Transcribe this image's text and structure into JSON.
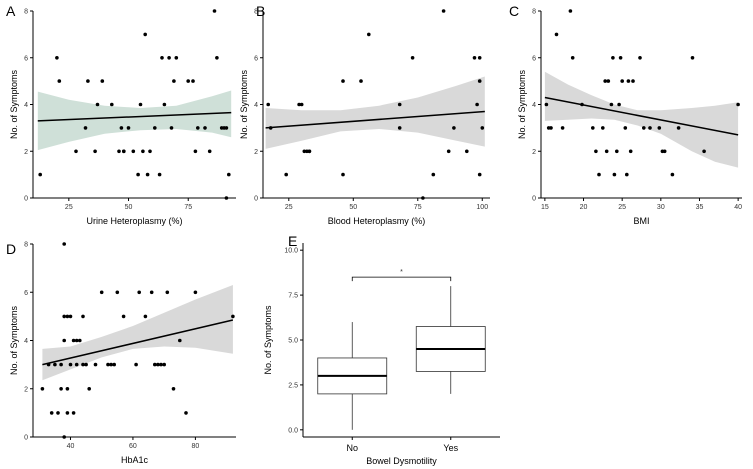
{
  "chart_data": [
    {
      "letter": "A",
      "type": "scatter",
      "xlabel": "Urine Heteroplasmy (%)",
      "ylabel": "No. of Symptoms",
      "xlim": [
        10,
        95
      ],
      "ylim": [
        0,
        8
      ],
      "xticks": [
        25,
        50,
        75
      ],
      "yticks": [
        0,
        2,
        4,
        6,
        8
      ],
      "xticklabels": [
        "25",
        "50",
        "75"
      ],
      "yticklabels": [
        "0",
        "2",
        "4",
        "6",
        "8"
      ],
      "band_color": "#cfe0d8",
      "points": [
        [
          13,
          1
        ],
        [
          20,
          6
        ],
        [
          21,
          5
        ],
        [
          28,
          2
        ],
        [
          32,
          3
        ],
        [
          33,
          5
        ],
        [
          36,
          2
        ],
        [
          37,
          4
        ],
        [
          39,
          5
        ],
        [
          43,
          4
        ],
        [
          46,
          2
        ],
        [
          47,
          3
        ],
        [
          48,
          2
        ],
        [
          48,
          2
        ],
        [
          50,
          3
        ],
        [
          52,
          2
        ],
        [
          54,
          1
        ],
        [
          55,
          4
        ],
        [
          56,
          2
        ],
        [
          57,
          7
        ],
        [
          58,
          1
        ],
        [
          59,
          2
        ],
        [
          61,
          3
        ],
        [
          63,
          1
        ],
        [
          64,
          6
        ],
        [
          65,
          4
        ],
        [
          67,
          6
        ],
        [
          68,
          3
        ],
        [
          69,
          5
        ],
        [
          70,
          6
        ],
        [
          75,
          5
        ],
        [
          77,
          5
        ],
        [
          78,
          2
        ],
        [
          79,
          3
        ],
        [
          82,
          3
        ],
        [
          84,
          2
        ],
        [
          86,
          8
        ],
        [
          87,
          6
        ],
        [
          89,
          3
        ],
        [
          90,
          3
        ],
        [
          91,
          0
        ],
        [
          91,
          3
        ],
        [
          92,
          1
        ]
      ],
      "fit": {
        "x0": 12,
        "y0": 3.3,
        "x1": 93,
        "y1": 3.65
      },
      "ci_upper": [
        [
          12,
          4.55
        ],
        [
          25,
          4.2
        ],
        [
          40,
          3.95
        ],
        [
          55,
          3.85
        ],
        [
          70,
          3.95
        ],
        [
          85,
          4.35
        ],
        [
          93,
          4.6
        ]
      ],
      "ci_lower": [
        [
          12,
          2.05
        ],
        [
          25,
          2.4
        ],
        [
          40,
          2.75
        ],
        [
          55,
          2.9
        ],
        [
          70,
          2.95
        ],
        [
          85,
          2.8
        ],
        [
          93,
          2.6
        ]
      ]
    },
    {
      "letter": "B",
      "type": "scatter",
      "xlabel": "Blood Heteroplasmy (%)",
      "ylabel": "No. of Symptoms",
      "xlim": [
        15,
        103
      ],
      "ylim": [
        0,
        8
      ],
      "xticks": [
        25,
        50,
        75,
        100
      ],
      "yticks": [
        0,
        2,
        4,
        6,
        8
      ],
      "xticklabels": [
        "25",
        "50",
        "75",
        "100"
      ],
      "yticklabels": [
        "0",
        "2",
        "4",
        "6",
        "8"
      ],
      "band_color": "#d9d9d9",
      "points": [
        [
          17,
          4
        ],
        [
          18,
          3
        ],
        [
          24,
          1
        ],
        [
          29,
          4
        ],
        [
          30,
          4
        ],
        [
          31,
          2
        ],
        [
          32,
          2
        ],
        [
          33,
          2
        ],
        [
          33,
          2
        ],
        [
          46,
          1
        ],
        [
          46,
          5
        ],
        [
          53,
          5
        ],
        [
          56,
          7
        ],
        [
          68,
          4
        ],
        [
          68,
          3
        ],
        [
          73,
          6
        ],
        [
          77,
          0
        ],
        [
          81,
          1
        ],
        [
          85,
          8
        ],
        [
          87,
          2
        ],
        [
          89,
          3
        ],
        [
          94,
          2
        ],
        [
          97,
          6
        ],
        [
          98,
          4
        ],
        [
          99,
          1
        ],
        [
          99,
          5
        ],
        [
          99,
          6
        ],
        [
          100,
          3
        ]
      ],
      "fit": {
        "x0": 16,
        "y0": 3.0,
        "x1": 101,
        "y1": 3.7
      },
      "ci_upper": [
        [
          16,
          3.85
        ],
        [
          30,
          3.75
        ],
        [
          45,
          3.75
        ],
        [
          60,
          3.95
        ],
        [
          75,
          4.3
        ],
        [
          90,
          4.8
        ],
        [
          101,
          5.2
        ]
      ],
      "ci_lower": [
        [
          16,
          2.1
        ],
        [
          30,
          2.45
        ],
        [
          45,
          2.85
        ],
        [
          60,
          2.95
        ],
        [
          75,
          2.8
        ],
        [
          90,
          2.45
        ],
        [
          101,
          2.2
        ]
      ]
    },
    {
      "letter": "C",
      "type": "scatter",
      "xlabel": "BMI",
      "ylabel": "No. of Symptoms",
      "xlim": [
        14.5,
        40.5
      ],
      "ylim": [
        0,
        8
      ],
      "xticks": [
        15,
        20,
        25,
        30,
        35,
        40
      ],
      "yticks": [
        0,
        2,
        4,
        6,
        8
      ],
      "xticklabels": [
        "15",
        "20",
        "25",
        "30",
        "35",
        "40"
      ],
      "yticklabels": [
        "0",
        "2",
        "4",
        "6",
        "8"
      ],
      "band_color": "#d9d9d9",
      "points": [
        [
          15.2,
          4
        ],
        [
          15.5,
          3
        ],
        [
          15.8,
          3
        ],
        [
          16.5,
          7
        ],
        [
          17.3,
          3
        ],
        [
          18.3,
          8
        ],
        [
          18.6,
          6
        ],
        [
          19.8,
          4
        ],
        [
          21.2,
          3
        ],
        [
          21.6,
          2
        ],
        [
          22.0,
          1
        ],
        [
          22.5,
          3
        ],
        [
          22.8,
          5
        ],
        [
          23.0,
          2
        ],
        [
          23.2,
          5
        ],
        [
          23.6,
          4
        ],
        [
          23.8,
          6
        ],
        [
          24.0,
          1
        ],
        [
          24.3,
          2
        ],
        [
          24.6,
          4
        ],
        [
          24.8,
          6
        ],
        [
          25.0,
          5
        ],
        [
          25.4,
          3
        ],
        [
          25.6,
          1
        ],
        [
          25.8,
          5
        ],
        [
          26.1,
          2
        ],
        [
          26.4,
          5
        ],
        [
          27.3,
          6
        ],
        [
          27.8,
          3
        ],
        [
          28.6,
          3
        ],
        [
          29.8,
          3
        ],
        [
          30.2,
          2
        ],
        [
          30.5,
          2
        ],
        [
          31.5,
          1
        ],
        [
          32.3,
          3
        ],
        [
          34.1,
          6
        ],
        [
          35.6,
          2
        ],
        [
          40.0,
          4
        ]
      ],
      "fit": {
        "x0": 15,
        "y0": 4.3,
        "x1": 40,
        "y1": 2.7
      },
      "ci_upper": [
        [
          15,
          5.4
        ],
        [
          18,
          4.85
        ],
        [
          21,
          4.4
        ],
        [
          24,
          4.0
        ],
        [
          27,
          3.75
        ],
        [
          30,
          3.75
        ],
        [
          34,
          3.85
        ],
        [
          37,
          3.95
        ],
        [
          40,
          4.1
        ]
      ],
      "ci_lower": [
        [
          15,
          3.3
        ],
        [
          18,
          3.35
        ],
        [
          21,
          3.4
        ],
        [
          24,
          3.35
        ],
        [
          27,
          3.1
        ],
        [
          30,
          2.75
        ],
        [
          34,
          2.0
        ],
        [
          37,
          1.55
        ],
        [
          40,
          1.3
        ]
      ]
    },
    {
      "letter": "D",
      "type": "scatter",
      "xlabel": "HbA1c",
      "ylabel": "No. of Symptoms",
      "xlim": [
        28,
        93
      ],
      "ylim": [
        0,
        8
      ],
      "xticks": [
        40,
        60,
        80
      ],
      "yticks": [
        0,
        2,
        4,
        6,
        8
      ],
      "xticklabels": [
        "40",
        "60",
        "80"
      ],
      "yticklabels": [
        "0",
        "2",
        "4",
        "6",
        "8"
      ],
      "band_color": "#d9d9d9",
      "points": [
        [
          31,
          2
        ],
        [
          33,
          3
        ],
        [
          34,
          1
        ],
        [
          35,
          3
        ],
        [
          36,
          1
        ],
        [
          37,
          2
        ],
        [
          37,
          3
        ],
        [
          38,
          4
        ],
        [
          38,
          5
        ],
        [
          38,
          8
        ],
        [
          38,
          0
        ],
        [
          39,
          1
        ],
        [
          39,
          2
        ],
        [
          39,
          5
        ],
        [
          40,
          3
        ],
        [
          40,
          5
        ],
        [
          41,
          4
        ],
        [
          41,
          1
        ],
        [
          42,
          3
        ],
        [
          42,
          4
        ],
        [
          43,
          4
        ],
        [
          44,
          5
        ],
        [
          44,
          3
        ],
        [
          45,
          3
        ],
        [
          46,
          2
        ],
        [
          48,
          3
        ],
        [
          50,
          6
        ],
        [
          52,
          3
        ],
        [
          53,
          3
        ],
        [
          54,
          3
        ],
        [
          55,
          6
        ],
        [
          57,
          5
        ],
        [
          61,
          3
        ],
        [
          62,
          6
        ],
        [
          64,
          5
        ],
        [
          66,
          6
        ],
        [
          67,
          3
        ],
        [
          68,
          3
        ],
        [
          69,
          3
        ],
        [
          70,
          3
        ],
        [
          71,
          6
        ],
        [
          73,
          2
        ],
        [
          75,
          4
        ],
        [
          77,
          1
        ],
        [
          80,
          6
        ],
        [
          92,
          5
        ]
      ],
      "fit": {
        "x0": 31,
        "y0": 3.0,
        "x1": 92,
        "y1": 4.85
      },
      "ci_upper": [
        [
          31,
          3.65
        ],
        [
          40,
          3.75
        ],
        [
          50,
          4.15
        ],
        [
          60,
          4.6
        ],
        [
          70,
          5.15
        ],
        [
          80,
          5.7
        ],
        [
          92,
          6.3
        ]
      ],
      "ci_lower": [
        [
          31,
          2.35
        ],
        [
          40,
          2.8
        ],
        [
          50,
          3.3
        ],
        [
          60,
          3.65
        ],
        [
          70,
          3.75
        ],
        [
          80,
          3.7
        ],
        [
          92,
          3.45
        ]
      ]
    },
    {
      "letter": "E",
      "type": "boxplot",
      "xlabel": "Bowel Dysmotility",
      "ylabel": "No. of Symptoms",
      "ylim": [
        -0.4,
        10.4
      ],
      "yticks": [
        0,
        2.5,
        5,
        7.5,
        10
      ],
      "yticklabels": [
        "0.0",
        "2.5",
        "5.0",
        "7.5",
        "10.0"
      ],
      "categories": [
        "No",
        "Yes"
      ],
      "boxes": [
        {
          "min": 0,
          "q1": 2,
          "median": 3,
          "q3": 4,
          "max": 6
        },
        {
          "min": 2,
          "q1": 3.25,
          "median": 4.5,
          "q3": 5.75,
          "max": 8
        }
      ],
      "significance": {
        "label": "*",
        "level": 8.5
      }
    }
  ]
}
